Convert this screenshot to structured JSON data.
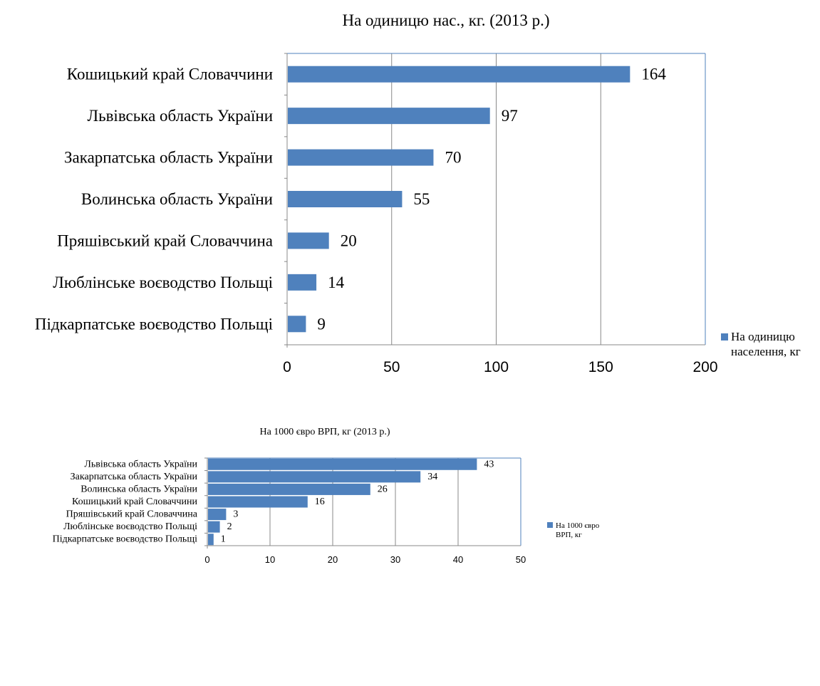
{
  "chart_data": [
    {
      "type": "bar",
      "orientation": "horizontal",
      "title": "На одиницю нас., кг. (2013 р.)",
      "categories": [
        "Кошицький край Словаччини",
        "Львівська область України",
        "Закарпатська область України",
        "Волинська область України",
        "Пряшівський край Словаччина",
        "Люблінське воєводство Польщі",
        "Підкарпатське воєводство Польщі"
      ],
      "series": [
        {
          "name": "На одиницю населення, кг",
          "values": [
            164,
            97,
            70,
            55,
            20,
            14,
            9
          ]
        }
      ],
      "xlim": [
        0,
        200
      ],
      "xticks": [
        0,
        50,
        100,
        150,
        200
      ],
      "grid": "vertical",
      "legend": "right",
      "color": "#4F81BD"
    },
    {
      "type": "bar",
      "orientation": "horizontal",
      "title": "На 1000 євро ВРП, кг (2013 р.)",
      "categories": [
        "Львівська область України",
        "Закарпатська область України",
        "Волинська область України",
        "Кошицький край Словаччини",
        "Пряшівський край Словаччина",
        "Люблінське воєводство Польщі",
        "Підкарпатське воєводство Польщі"
      ],
      "series": [
        {
          "name": "На 1000 євро ВРП, кг",
          "values": [
            43,
            34,
            26,
            16,
            3,
            2,
            1
          ]
        }
      ],
      "xlim": [
        0,
        50
      ],
      "xticks": [
        0,
        10,
        20,
        30,
        40,
        50
      ],
      "grid": "vertical",
      "legend": "right",
      "color": "#4F81BD"
    }
  ]
}
